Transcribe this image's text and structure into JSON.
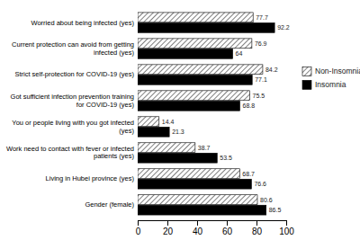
{
  "chart_data": {
    "type": "bar",
    "orientation": "horizontal",
    "categories": [
      "Worried about being infected (yes)",
      "Current protection can avoid from getting infected (yes)",
      "Strict self-protection for COVID-19 (yes)",
      "Got sufficient infection prevention training for COVID-19 (yes)",
      "You or people living with you got infected (yes)",
      "Work need to contact with fever or infected patients (yes)",
      "Living in Hubei province (yes)",
      "Gender (female)"
    ],
    "series": [
      {
        "name": "Non-Insomnia",
        "color": "#ffffff",
        "values": [
          77.7,
          76.9,
          84.2,
          75.5,
          14.4,
          38.7,
          68.7,
          80.6
        ]
      },
      {
        "name": "Insomnia",
        "color": "#000000",
        "values": [
          92.2,
          64.0,
          77.1,
          68.8,
          21.3,
          53.5,
          76.6,
          86.5
        ]
      }
    ],
    "xlim": [
      0,
      100
    ],
    "xticks": [
      0,
      20,
      40,
      60,
      80,
      100
    ],
    "data_labels": true,
    "legend": "right",
    "grid": false
  }
}
